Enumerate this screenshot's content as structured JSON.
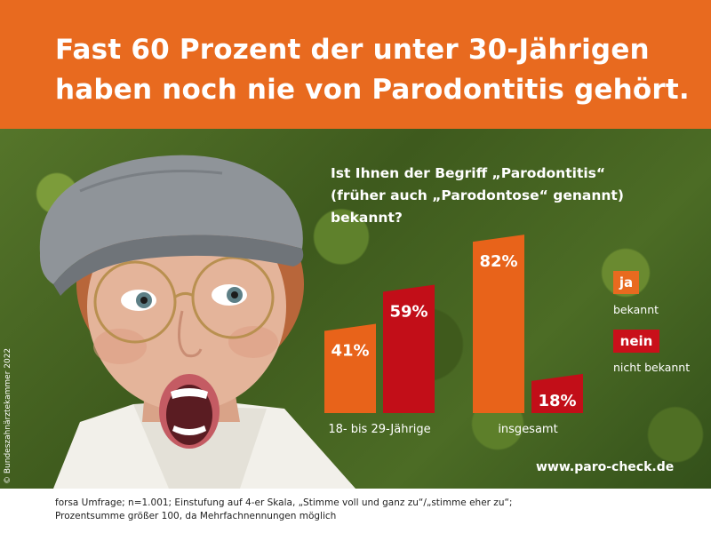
{
  "headline": {
    "line1": "Fast 60 Prozent der unter 30-Jährigen",
    "line2": "haben noch nie von Parodontitis gehört."
  },
  "question": {
    "line1": "Ist Ihnen der Begriff „Parodontitis“",
    "line2": "(früher auch „Parodontose“ genannt)",
    "line3": "bekannt?"
  },
  "colors": {
    "brand_orange": "#e86a1f",
    "red": "#c9101a",
    "orange_bar": "#e8631a",
    "red_bar": "#c20e18"
  },
  "chart_data": {
    "type": "bar",
    "categories": [
      "18- bis 29-Jährige",
      "insgesamt"
    ],
    "series": [
      {
        "name": "ja",
        "values": [
          41,
          82
        ]
      },
      {
        "name": "nein",
        "values": [
          59,
          18
        ]
      }
    ],
    "value_labels": [
      [
        "41%",
        "82%"
      ],
      [
        "59%",
        "18%"
      ]
    ],
    "ylim": [
      0,
      100
    ],
    "grid": false,
    "legend_position": "right"
  },
  "legend": {
    "ja_badge": "ja",
    "ja_label": "bekannt",
    "nein_badge": "nein",
    "nein_label": "nicht bekannt"
  },
  "website": "www.paro-check.de",
  "copyright": "© Bundeszahnärztekammer 2022",
  "footnote": {
    "line1": "forsa Umfrage; n=1.001; Einstufung auf 4-er Skala, „Stimme voll und ganz zu“/„stimme eher zu“;",
    "line2": "Prozentsumme größer 100, da Mehrfachnennungen möglich"
  }
}
